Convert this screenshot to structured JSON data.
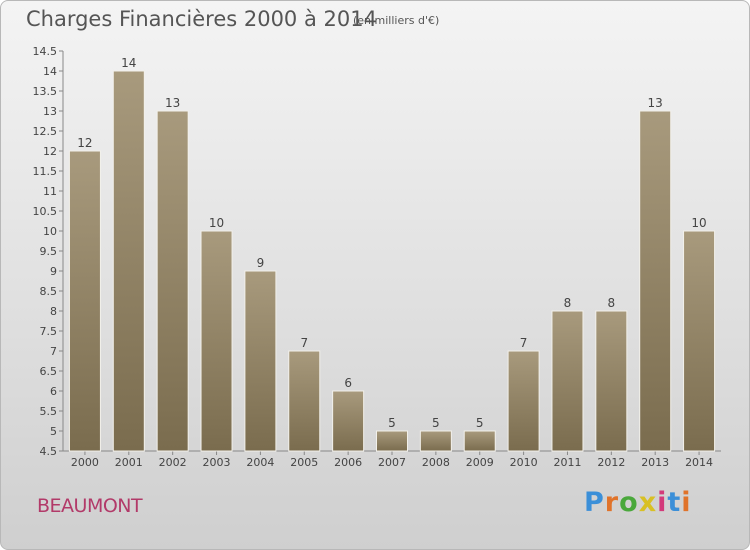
{
  "header": {
    "title": "Charges Financières 2000 à 2014",
    "subtitle": "(en milliers d'€)"
  },
  "footer": {
    "commune": "BEAUMONT",
    "logo": "Proxiti"
  },
  "colors": {
    "bar_top": "#a89a7d",
    "bar_bottom": "#7a6c4e",
    "logo": [
      "#3b8fd8",
      "#e0732a",
      "#4aa83c",
      "#d8c024",
      "#d33a7a",
      "#3b8fd8",
      "#e0732a"
    ]
  },
  "chart_data": {
    "type": "bar",
    "title": "Charges Financières 2000 à 2014",
    "subtitle": "(en milliers d'€)",
    "categories": [
      "2000",
      "2001",
      "2002",
      "2003",
      "2004",
      "2005",
      "2006",
      "2007",
      "2008",
      "2009",
      "2010",
      "2011",
      "2012",
      "2013",
      "2014"
    ],
    "values": [
      12,
      14,
      13,
      10,
      9,
      7,
      6,
      5,
      5,
      5,
      7,
      8,
      8,
      13,
      10
    ],
    "ylim": [
      4.5,
      14.5
    ],
    "yticks": [
      "4.5",
      "5",
      "5.5",
      "6",
      "6.5",
      "7",
      "7.5",
      "8",
      "8.5",
      "9",
      "9.5",
      "10",
      "10.5",
      "11",
      "11.5",
      "12",
      "12.5",
      "13",
      "13.5",
      "14",
      "14.5"
    ],
    "grid": false,
    "legend": "none"
  }
}
